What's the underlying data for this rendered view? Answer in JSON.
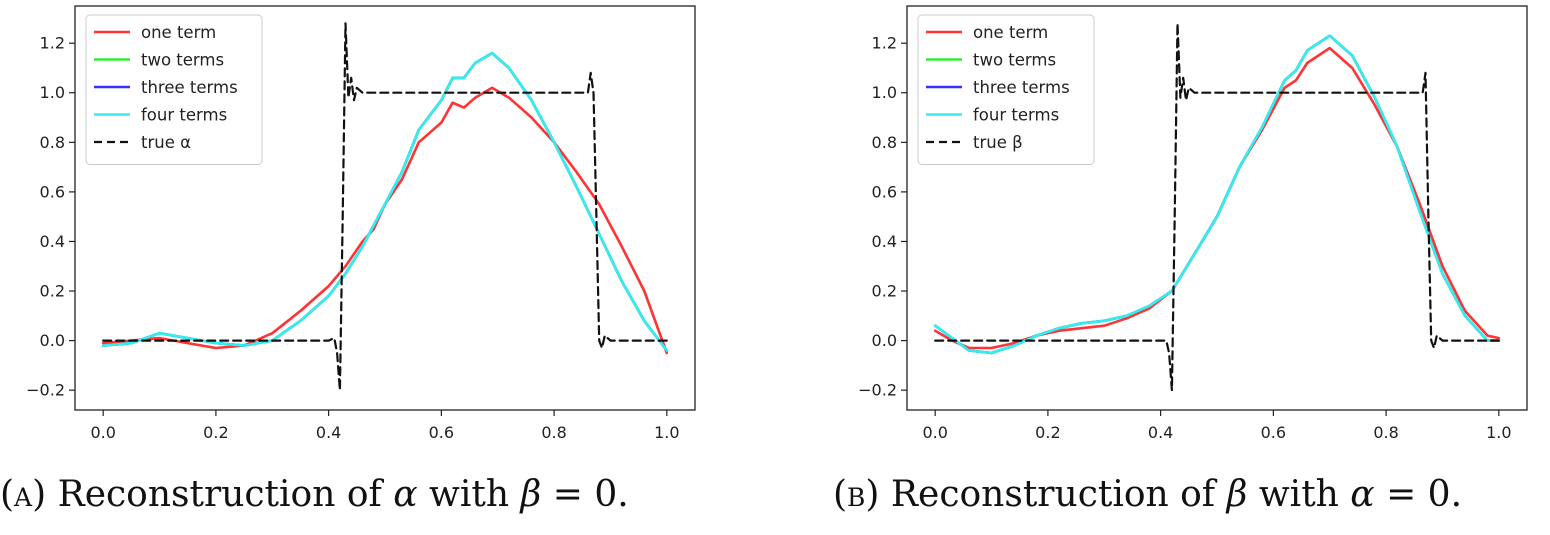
{
  "colors": {
    "one_term": "#ff3333",
    "two_terms": "#33ee33",
    "three_terms": "#3333ff",
    "four_terms": "#33eeee",
    "true": "#111111"
  },
  "captions": [
    {
      "label": "(a)",
      "pre": "Reconstruction of",
      "sym": "α",
      "mid": "with",
      "cond_sym": "β",
      "cond_rest": "= 0."
    },
    {
      "label": "(b)",
      "pre": "Reconstruction of",
      "sym": "β",
      "mid": "with",
      "cond_sym": "α",
      "cond_rest": "= 0."
    }
  ],
  "chart_data": [
    {
      "type": "line",
      "title": "",
      "xlabel": "",
      "ylabel": "",
      "xlim": [
        -0.05,
        1.05
      ],
      "ylim": [
        -0.28,
        1.35
      ],
      "xticks": [
        "0.0",
        "0.2",
        "0.4",
        "0.6",
        "0.8",
        "1.0"
      ],
      "yticks": [
        "−0.2",
        "0.0",
        "0.2",
        "0.4",
        "0.6",
        "0.8",
        "1.0",
        "1.2"
      ],
      "legend_location": "upper-left",
      "series": [
        {
          "name": "one term",
          "color_key": "one_term",
          "style": "solid",
          "x": [
            0.0,
            0.05,
            0.1,
            0.15,
            0.2,
            0.25,
            0.3,
            0.35,
            0.4,
            0.43,
            0.46,
            0.48,
            0.5,
            0.53,
            0.56,
            0.6,
            0.62,
            0.64,
            0.66,
            0.69,
            0.72,
            0.76,
            0.8,
            0.84,
            0.88,
            0.92,
            0.96,
            1.0
          ],
          "y": [
            -0.01,
            0.0,
            0.01,
            -0.01,
            -0.03,
            -0.02,
            0.03,
            0.12,
            0.22,
            0.3,
            0.4,
            0.45,
            0.55,
            0.65,
            0.8,
            0.88,
            0.96,
            0.94,
            0.98,
            1.02,
            0.98,
            0.9,
            0.8,
            0.68,
            0.55,
            0.38,
            0.2,
            -0.05
          ]
        },
        {
          "name": "two terms",
          "color_key": "two_terms",
          "style": "solid",
          "x": [
            0.0,
            0.05,
            0.1,
            0.15,
            0.2,
            0.25,
            0.3,
            0.35,
            0.4,
            0.43,
            0.46,
            0.5,
            0.53,
            0.56,
            0.6,
            0.62,
            0.64,
            0.66,
            0.69,
            0.72,
            0.76,
            0.8,
            0.84,
            0.88,
            0.92,
            0.96,
            1.0
          ],
          "y": [
            -0.02,
            -0.01,
            0.03,
            0.01,
            -0.01,
            -0.02,
            0.0,
            0.08,
            0.18,
            0.27,
            0.38,
            0.55,
            0.68,
            0.85,
            0.97,
            1.06,
            1.06,
            1.12,
            1.16,
            1.1,
            0.97,
            0.8,
            0.62,
            0.43,
            0.24,
            0.08,
            -0.04
          ]
        },
        {
          "name": "three terms",
          "color_key": "three_terms",
          "style": "solid",
          "x": [
            0.0,
            0.05,
            0.1,
            0.15,
            0.2,
            0.25,
            0.3,
            0.35,
            0.4,
            0.43,
            0.46,
            0.5,
            0.53,
            0.56,
            0.6,
            0.62,
            0.64,
            0.66,
            0.69,
            0.72,
            0.76,
            0.8,
            0.84,
            0.88,
            0.92,
            0.96,
            1.0
          ],
          "y": [
            -0.02,
            -0.01,
            0.03,
            0.01,
            -0.01,
            -0.02,
            0.0,
            0.08,
            0.18,
            0.27,
            0.38,
            0.55,
            0.68,
            0.85,
            0.97,
            1.06,
            1.06,
            1.12,
            1.16,
            1.1,
            0.97,
            0.8,
            0.62,
            0.43,
            0.24,
            0.08,
            -0.04
          ]
        },
        {
          "name": "four terms",
          "color_key": "four_terms",
          "style": "solid",
          "x": [
            0.0,
            0.05,
            0.1,
            0.15,
            0.2,
            0.25,
            0.3,
            0.35,
            0.4,
            0.43,
            0.46,
            0.5,
            0.53,
            0.56,
            0.6,
            0.62,
            0.64,
            0.66,
            0.69,
            0.72,
            0.76,
            0.8,
            0.84,
            0.88,
            0.92,
            0.96,
            1.0
          ],
          "y": [
            -0.02,
            -0.01,
            0.03,
            0.01,
            -0.01,
            -0.02,
            0.0,
            0.08,
            0.18,
            0.27,
            0.38,
            0.55,
            0.68,
            0.85,
            0.97,
            1.06,
            1.06,
            1.12,
            1.16,
            1.1,
            0.97,
            0.8,
            0.62,
            0.43,
            0.24,
            0.08,
            -0.04
          ]
        },
        {
          "name": "true α",
          "color_key": "true",
          "style": "dashed",
          "x": [
            0.0,
            0.4,
            0.41,
            0.415,
            0.42,
            0.425,
            0.43,
            0.435,
            0.44,
            0.445,
            0.45,
            0.46,
            0.86,
            0.865,
            0.87,
            0.875,
            0.88,
            0.885,
            0.89,
            0.9,
            1.0
          ],
          "y": [
            0.0,
            0.0,
            0.01,
            -0.05,
            -0.2,
            0.5,
            1.28,
            0.98,
            1.06,
            0.97,
            1.02,
            1.0,
            1.0,
            1.08,
            1.0,
            0.5,
            0.0,
            -0.03,
            0.02,
            0.0,
            0.0
          ]
        }
      ]
    },
    {
      "type": "line",
      "title": "",
      "xlabel": "",
      "ylabel": "",
      "xlim": [
        -0.05,
        1.05
      ],
      "ylim": [
        -0.28,
        1.35
      ],
      "xticks": [
        "0.0",
        "0.2",
        "0.4",
        "0.6",
        "0.8",
        "1.0"
      ],
      "yticks": [
        "−0.2",
        "0.0",
        "0.2",
        "0.4",
        "0.6",
        "0.8",
        "1.0",
        "1.2"
      ],
      "legend_location": "upper-left",
      "series": [
        {
          "name": "one term",
          "color_key": "one_term",
          "style": "solid",
          "x": [
            0.0,
            0.03,
            0.06,
            0.1,
            0.14,
            0.18,
            0.22,
            0.26,
            0.3,
            0.34,
            0.38,
            0.42,
            0.46,
            0.5,
            0.54,
            0.58,
            0.62,
            0.64,
            0.66,
            0.7,
            0.74,
            0.78,
            0.82,
            0.86,
            0.9,
            0.94,
            0.98,
            1.0
          ],
          "y": [
            0.04,
            0.0,
            -0.03,
            -0.03,
            -0.01,
            0.02,
            0.04,
            0.05,
            0.06,
            0.09,
            0.13,
            0.2,
            0.35,
            0.5,
            0.7,
            0.85,
            1.02,
            1.05,
            1.12,
            1.18,
            1.1,
            0.95,
            0.78,
            0.55,
            0.3,
            0.12,
            0.02,
            0.01
          ]
        },
        {
          "name": "two terms",
          "color_key": "two_terms",
          "style": "solid",
          "x": [
            0.0,
            0.03,
            0.06,
            0.1,
            0.14,
            0.18,
            0.22,
            0.26,
            0.3,
            0.34,
            0.38,
            0.42,
            0.46,
            0.5,
            0.54,
            0.58,
            0.62,
            0.64,
            0.66,
            0.7,
            0.74,
            0.78,
            0.82,
            0.86,
            0.9,
            0.94,
            0.98,
            1.0
          ],
          "y": [
            0.06,
            0.01,
            -0.04,
            -0.05,
            -0.02,
            0.02,
            0.05,
            0.07,
            0.08,
            0.1,
            0.14,
            0.2,
            0.35,
            0.5,
            0.7,
            0.86,
            1.05,
            1.09,
            1.17,
            1.23,
            1.15,
            0.98,
            0.78,
            0.52,
            0.27,
            0.1,
            0.0,
            0.0
          ]
        },
        {
          "name": "three terms",
          "color_key": "three_terms",
          "style": "solid",
          "x": [
            0.0,
            0.03,
            0.06,
            0.1,
            0.14,
            0.18,
            0.22,
            0.26,
            0.3,
            0.34,
            0.38,
            0.42,
            0.46,
            0.5,
            0.54,
            0.58,
            0.62,
            0.64,
            0.66,
            0.7,
            0.74,
            0.78,
            0.82,
            0.86,
            0.9,
            0.94,
            0.98,
            1.0
          ],
          "y": [
            0.06,
            0.01,
            -0.04,
            -0.05,
            -0.02,
            0.02,
            0.05,
            0.07,
            0.08,
            0.1,
            0.14,
            0.2,
            0.35,
            0.5,
            0.7,
            0.86,
            1.05,
            1.09,
            1.17,
            1.23,
            1.15,
            0.98,
            0.78,
            0.52,
            0.27,
            0.1,
            0.0,
            0.0
          ]
        },
        {
          "name": "four terms",
          "color_key": "four_terms",
          "style": "solid",
          "x": [
            0.0,
            0.03,
            0.06,
            0.1,
            0.14,
            0.18,
            0.22,
            0.26,
            0.3,
            0.34,
            0.38,
            0.42,
            0.46,
            0.5,
            0.54,
            0.58,
            0.62,
            0.64,
            0.66,
            0.7,
            0.74,
            0.78,
            0.82,
            0.86,
            0.9,
            0.94,
            0.98,
            1.0
          ],
          "y": [
            0.06,
            0.01,
            -0.04,
            -0.05,
            -0.02,
            0.02,
            0.05,
            0.07,
            0.08,
            0.1,
            0.14,
            0.2,
            0.35,
            0.5,
            0.7,
            0.86,
            1.05,
            1.09,
            1.17,
            1.23,
            1.15,
            0.98,
            0.78,
            0.52,
            0.27,
            0.1,
            0.0,
            0.0
          ]
        },
        {
          "name": "true β",
          "color_key": "true",
          "style": "dashed",
          "x": [
            0.0,
            0.41,
            0.415,
            0.42,
            0.425,
            0.43,
            0.435,
            0.44,
            0.445,
            0.45,
            0.46,
            0.865,
            0.87,
            0.875,
            0.88,
            0.885,
            0.89,
            0.9,
            1.0
          ],
          "y": [
            0.0,
            0.0,
            -0.05,
            -0.2,
            0.5,
            1.28,
            0.98,
            1.06,
            0.97,
            1.02,
            1.0,
            1.0,
            1.08,
            0.5,
            0.0,
            -0.03,
            0.02,
            0.0,
            0.0
          ]
        }
      ]
    }
  ]
}
